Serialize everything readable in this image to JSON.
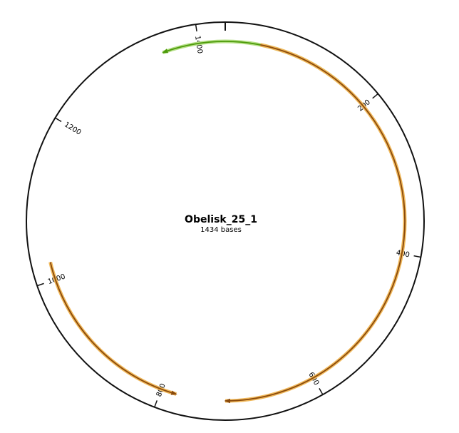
{
  "plasmid": {
    "name": "Obelisk_25_1",
    "length_label": "1434 bases",
    "length_bp": 1434
  },
  "ticks": [
    {
      "position": 200,
      "label": "200"
    },
    {
      "position": 400,
      "label": "400"
    },
    {
      "position": 600,
      "label": "600"
    },
    {
      "position": 800,
      "label": "800"
    },
    {
      "position": 1000,
      "label": "1000"
    },
    {
      "position": 1200,
      "label": "1200"
    },
    {
      "position": 1400,
      "label": "1400"
    }
  ],
  "features": [
    {
      "id": "green",
      "start": 1353,
      "end": 162,
      "strand": "reverse",
      "color": "#4c9a0a",
      "halo": "#b4df84"
    },
    {
      "id": "orange-a",
      "start": 45,
      "end": 717,
      "strand": "forward",
      "color": "#8a4a0c",
      "halo": "#f0b85a"
    },
    {
      "id": "orange-b",
      "start": 780,
      "end": 1023,
      "strand": "reverse",
      "color": "#8a4a0c",
      "halo": "#f0b85a"
    }
  ]
}
